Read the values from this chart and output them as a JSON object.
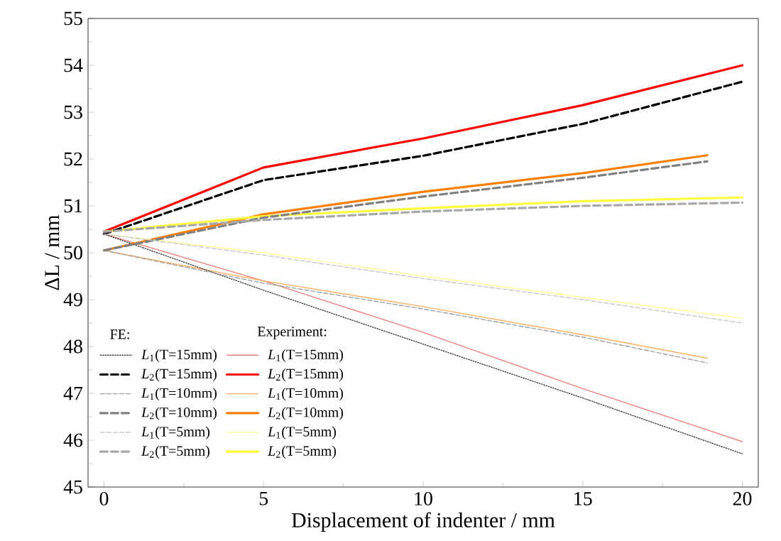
{
  "chart_data": {
    "type": "line",
    "xlabel": "Displacement of indenter / mm",
    "ylabel": "ΔL / mm",
    "xlim": [
      -0.5,
      20.5
    ],
    "ylim": [
      45,
      55
    ],
    "xticks": [
      0,
      5,
      10,
      15,
      20
    ],
    "yticks": [
      45,
      46,
      47,
      48,
      49,
      50,
      51,
      52,
      53,
      54,
      55
    ],
    "legend": "bottom left",
    "annotations": [
      "FE:",
      "Experiment:"
    ],
    "x": [
      0,
      5,
      10,
      15,
      20
    ],
    "series": [
      {
        "name": "*L*$_{1}$(T=15mm)",
        "color": "#404040",
        "line_style": "dotted",
        "values": [
          50.4,
          49.2,
          48.05,
          46.9,
          45.71
        ]
      },
      {
        "name": "*L*$_{2}$(T=15mm)",
        "color": "#000000",
        "line_style": "dashed",
        "values": [
          50.4,
          51.55,
          52.07,
          52.75,
          53.65
        ]
      },
      {
        "name": "*L*$_{1}$(T=10mm)",
        "color": "#a0a0a0",
        "line_style": "dashed",
        "x": [
          0,
          5,
          10,
          15,
          18.9
        ],
        "values": [
          50.05,
          49.35,
          48.8,
          48.2,
          47.65
        ]
      },
      {
        "name": "*L*$_{2}$(T=10mm)",
        "color": "#808080",
        "line_style": "dashed",
        "x": [
          0,
          5,
          10,
          15,
          18.9
        ],
        "values": [
          50.05,
          50.75,
          51.2,
          51.6,
          51.95
        ]
      },
      {
        "name": "*L*$_{1}$(T=5mm)",
        "color": "#c8c8c8",
        "line_style": "dashed",
        "values": [
          50.4,
          49.95,
          49.45,
          49.0,
          48.5
        ]
      },
      {
        "name": "*L*$_{2}$(T=5mm)",
        "color": "#a8a8a8",
        "line_style": "dashed",
        "values": [
          50.45,
          50.7,
          50.88,
          51.0,
          51.07
        ]
      },
      {
        "name": "*L*$_{1}$(T=15mm)",
        "color": "#f08080",
        "line_style": "solid",
        "values": [
          50.4,
          49.4,
          48.3,
          47.1,
          45.97
        ]
      },
      {
        "name": "*L*$_{2}$(T=15mm)",
        "color": "#ff0000",
        "line_style": "solid",
        "values": [
          50.45,
          51.82,
          52.44,
          53.15,
          54.0
        ]
      },
      {
        "name": "*L*$_{1}$(T=10mm)",
        "color": "#ffb060",
        "line_style": "solid",
        "x": [
          0,
          5,
          10,
          15,
          18.9
        ],
        "values": [
          50.05,
          49.4,
          48.85,
          48.25,
          47.75
        ]
      },
      {
        "name": "*L*$_{2}$(T=10mm)",
        "color": "#ff8000",
        "line_style": "solid",
        "x": [
          0,
          5,
          10,
          15,
          18.9
        ],
        "values": [
          50.05,
          50.82,
          51.3,
          51.7,
          52.08
        ]
      },
      {
        "name": "*L*$_{1}$(T=5mm)",
        "color": "#ffff99",
        "line_style": "solid",
        "values": [
          50.4,
          50.0,
          49.5,
          49.05,
          48.6
        ]
      },
      {
        "name": "*L*$_{2}$(T=5mm)",
        "color": "#ffff40",
        "line_style": "solid",
        "values": [
          50.45,
          50.78,
          50.95,
          51.1,
          51.18
        ]
      }
    ]
  }
}
